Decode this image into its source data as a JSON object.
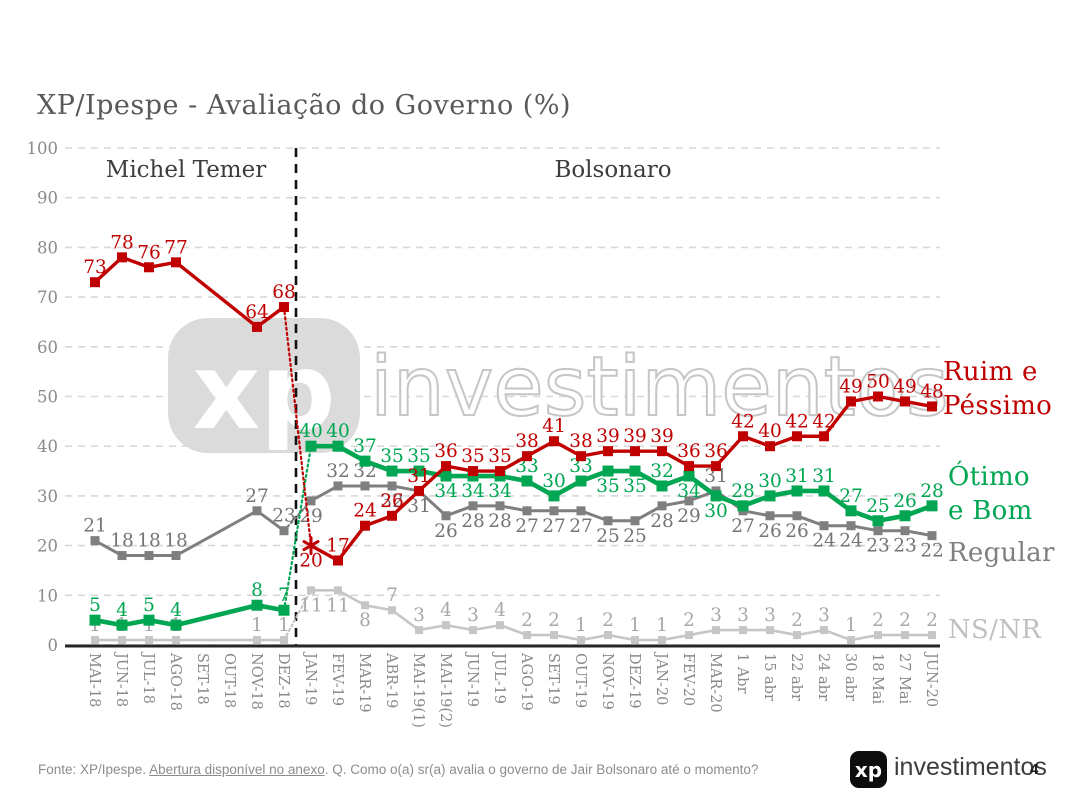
{
  "title": "XP/Ipespe - Avaliação do Governo (%)",
  "period_labels": {
    "temer": "Michel Temer",
    "bolsonaro": "Bolsonaro"
  },
  "watermark": {
    "logo_text": "xp",
    "name": "investimentos"
  },
  "legend": {
    "ruim": "Ruim e\nPéssimo",
    "otimo": "Ótimo\ne Bom",
    "regular": "Regular",
    "nsnr": "NS/NR"
  },
  "footer": {
    "source_prefix": "Fonte: XP/Ipespe. ",
    "source_link": "Abertura disponível no anexo",
    "source_suffix": ". Q. Como o(a) sr(a) avalia o governo de Jair Bolsonaro até o momento?",
    "brand_logo": "xp",
    "brand_name": "investimentos",
    "page_number": "4"
  },
  "chart_data": {
    "type": "line",
    "title": "XP/Ipespe - Avaliação do Governo (%)",
    "ylim": [
      0,
      100
    ],
    "ytick_step": 10,
    "grid": "horizontal-dashed",
    "divider_after_index": 7,
    "categories": [
      "MAI-18",
      "JUN-18",
      "JUL-18",
      "AGO-18",
      "SET-18",
      "OUT-18",
      "NOV-18",
      "DEZ-18",
      "JAN-19",
      "FEV-19",
      "MAR-19",
      "ABR-19",
      "MAI-19(1)",
      "MAI-19(2)",
      "JUN-19",
      "JUL-19",
      "AGO-19",
      "SET-19",
      "OUT-19",
      "NOV-19",
      "DEZ-19",
      "JAN-20",
      "FEV-20",
      "MAR-20",
      "1 Abr",
      "15 abr",
      "22 abr",
      "24 abr",
      "30 abr",
      "18 Mai",
      "27 Mai",
      "JUN-20"
    ],
    "series": [
      {
        "name": "NS/NR",
        "color": "#c6c6c6",
        "label_color": "#a9a9a9",
        "width": 2.6,
        "marker": 8,
        "values": [
          1,
          1,
          1,
          1,
          null,
          null,
          1,
          1,
          11,
          11,
          8,
          7,
          3,
          4,
          3,
          4,
          2,
          2,
          1,
          2,
          1,
          1,
          2,
          3,
          3,
          3,
          2,
          3,
          1,
          2,
          2,
          2
        ],
        "label_side": [
          "a",
          "a",
          "a",
          "a",
          null,
          null,
          "a",
          "a",
          "b",
          "b",
          "b",
          "a",
          "a",
          "a",
          "a",
          "a",
          "a",
          "a",
          "a",
          "a",
          "a",
          "a",
          "a",
          "a",
          "a",
          "a",
          "a",
          "a",
          "a",
          "a",
          "a",
          "a"
        ]
      },
      {
        "name": "Regular",
        "color": "#7f7f7f",
        "label_color": "#757575",
        "width": 3,
        "marker": 9,
        "values": [
          21,
          18,
          18,
          18,
          null,
          null,
          27,
          23,
          29,
          32,
          32,
          32,
          31,
          26,
          28,
          28,
          27,
          27,
          27,
          25,
          25,
          28,
          29,
          31,
          27,
          26,
          26,
          24,
          24,
          23,
          23,
          22
        ],
        "label_side": [
          "a",
          "a",
          "a",
          "a",
          null,
          null,
          "a",
          "a",
          "b",
          "a",
          "a",
          "b",
          "b",
          "b",
          "b",
          "b",
          "b",
          "b",
          "b",
          "b",
          "b",
          "b",
          "b",
          "a",
          "b",
          "b",
          "b",
          "b",
          "b",
          "b",
          "b",
          "b"
        ]
      },
      {
        "name": "Ótimo e Bom",
        "color": "#00a651",
        "label_color": "#00a651",
        "width": 4.6,
        "marker": 11,
        "values": [
          5,
          4,
          5,
          4,
          null,
          null,
          8,
          7,
          40,
          40,
          37,
          35,
          35,
          34,
          34,
          34,
          33,
          30,
          33,
          35,
          35,
          32,
          34,
          30,
          28,
          30,
          31,
          31,
          27,
          25,
          26,
          28
        ],
        "label_side": [
          "a",
          "a",
          "a",
          "a",
          null,
          null,
          "a",
          "a",
          "a",
          "a",
          "a",
          "a",
          "a",
          "b",
          "b",
          "b",
          "a",
          "a",
          "a",
          "b",
          "b",
          "a",
          "b",
          "b",
          "a",
          "a",
          "a",
          "a",
          "a",
          "a",
          "a",
          "a"
        ]
      },
      {
        "name": "Ruim e Péssimo",
        "color": "#c00000",
        "label_color": "#c00000",
        "width": 3.4,
        "marker": 10,
        "star_index": 8,
        "values": [
          73,
          78,
          76,
          77,
          null,
          null,
          64,
          68,
          20,
          17,
          24,
          26,
          31,
          36,
          35,
          35,
          38,
          41,
          38,
          39,
          39,
          39,
          36,
          36,
          42,
          40,
          42,
          42,
          49,
          50,
          49,
          48
        ],
        "label_side": [
          "a",
          "a",
          "a",
          "a",
          null,
          null,
          "a",
          "a",
          "b",
          "a",
          "a",
          "a",
          "a",
          "a",
          "a",
          "a",
          "a",
          "a",
          "a",
          "a",
          "a",
          "a",
          "a",
          "a",
          "a",
          "a",
          "a",
          "a",
          "a",
          "a",
          "a",
          "a"
        ]
      }
    ]
  }
}
